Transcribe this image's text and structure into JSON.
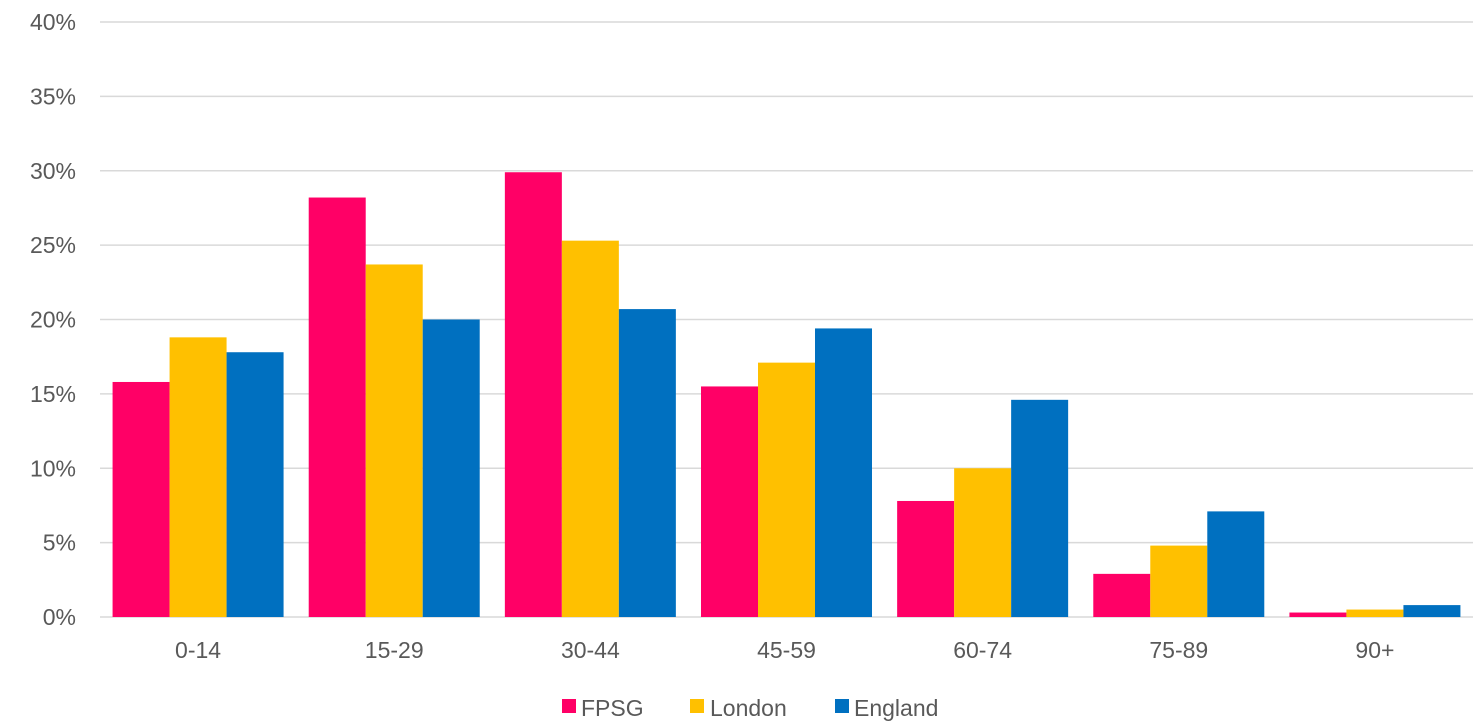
{
  "chart_data": {
    "type": "bar",
    "title": "",
    "xlabel": "",
    "ylabel": "",
    "categories": [
      "0-14",
      "15-29",
      "30-44",
      "45-59",
      "60-74",
      "75-89",
      "90+"
    ],
    "series": [
      {
        "name": "FPSG",
        "color": "#FF0066",
        "values": [
          15.8,
          28.2,
          29.9,
          15.5,
          7.8,
          2.9,
          0.3
        ]
      },
      {
        "name": "London",
        "color": "#FFC000",
        "values": [
          18.8,
          23.7,
          25.3,
          17.1,
          10.0,
          4.8,
          0.5
        ]
      },
      {
        "name": "England",
        "color": "#0070C0",
        "values": [
          17.8,
          20.0,
          20.7,
          19.4,
          14.6,
          7.1,
          0.8
        ]
      }
    ],
    "ylim": [
      0,
      40
    ],
    "yticks": [
      0,
      5,
      10,
      15,
      20,
      25,
      30,
      35,
      40
    ],
    "ytick_labels": [
      "0%",
      "5%",
      "10%",
      "15%",
      "20%",
      "25%",
      "30%",
      "35%",
      "40%"
    ],
    "grid": true,
    "gridline_color": "#D9D9D9",
    "legend_position": "bottom"
  }
}
